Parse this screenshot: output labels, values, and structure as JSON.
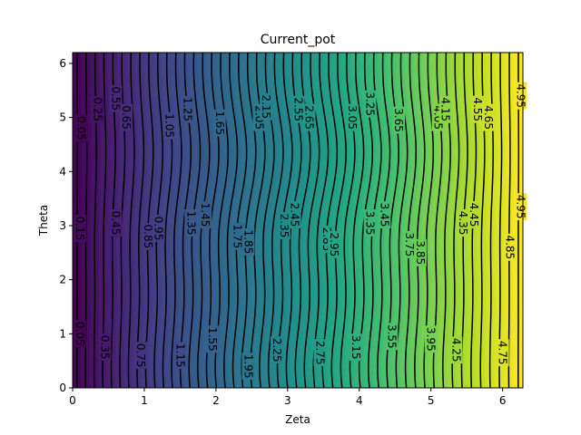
{
  "chart_data": {
    "type": "contour",
    "title": "Current_pot",
    "xlabel": "Zeta",
    "ylabel": "Theta",
    "xlim": [
      0,
      6.283
    ],
    "ylim": [
      0,
      6.2
    ],
    "x_ticks": [
      0,
      1,
      2,
      3,
      4,
      5,
      6
    ],
    "y_ticks": [
      0,
      1,
      2,
      3,
      4,
      5,
      6
    ],
    "colormap": "viridis",
    "value_range": [
      0,
      5
    ],
    "filled_level_step": 0.1,
    "contour_line_color": "#000000",
    "contour_levels": [
      0.05,
      0.15,
      0.25,
      0.35,
      0.45,
      0.55,
      0.65,
      0.75,
      0.85,
      0.95,
      1.05,
      1.15,
      1.25,
      1.35,
      1.45,
      1.55,
      1.65,
      1.75,
      1.85,
      1.95,
      2.05,
      2.15,
      2.25,
      2.35,
      2.45,
      2.55,
      2.65,
      2.75,
      2.85,
      2.95,
      3.05,
      3.15,
      3.25,
      3.35,
      3.45,
      3.55,
      3.65,
      3.75,
      3.85,
      3.95,
      4.05,
      4.15,
      4.25,
      4.35,
      4.45,
      4.55,
      4.65,
      4.75,
      4.85,
      4.95
    ],
    "contour_labels": [
      {
        "text": "0.05",
        "x": 0.12,
        "y": 4.8
      },
      {
        "text": "0.25",
        "x": 0.35,
        "y": 5.15
      },
      {
        "text": "0.55",
        "x": 0.6,
        "y": 5.35
      },
      {
        "text": "0.65",
        "x": 0.75,
        "y": 5.0
      },
      {
        "text": "1.05",
        "x": 1.35,
        "y": 4.85
      },
      {
        "text": "1.25",
        "x": 1.6,
        "y": 5.15
      },
      {
        "text": "1.65",
        "x": 2.05,
        "y": 4.9
      },
      {
        "text": "2.05",
        "x": 2.6,
        "y": 5.0
      },
      {
        "text": "2.15",
        "x": 2.7,
        "y": 5.2
      },
      {
        "text": "2.55",
        "x": 3.15,
        "y": 5.15
      },
      {
        "text": "2.65",
        "x": 3.3,
        "y": 5.0
      },
      {
        "text": "3.05",
        "x": 3.9,
        "y": 5.0
      },
      {
        "text": "3.25",
        "x": 4.15,
        "y": 5.25
      },
      {
        "text": "3.65",
        "x": 4.55,
        "y": 4.95
      },
      {
        "text": "4.05",
        "x": 5.1,
        "y": 5.0
      },
      {
        "text": "4.15",
        "x": 5.2,
        "y": 5.15
      },
      {
        "text": "4.55",
        "x": 5.65,
        "y": 5.15
      },
      {
        "text": "4.65",
        "x": 5.8,
        "y": 5.0
      },
      {
        "text": "4.95",
        "x": 6.25,
        "y": 5.4
      },
      {
        "text": "0.15",
        "x": 0.1,
        "y": 2.95
      },
      {
        "text": "0.45",
        "x": 0.6,
        "y": 3.05
      },
      {
        "text": "0.85",
        "x": 1.05,
        "y": 2.8
      },
      {
        "text": "0.95",
        "x": 1.2,
        "y": 2.95
      },
      {
        "text": "1.35",
        "x": 1.65,
        "y": 3.05
      },
      {
        "text": "1.45",
        "x": 1.85,
        "y": 3.2
      },
      {
        "text": "1.75",
        "x": 2.3,
        "y": 2.8
      },
      {
        "text": "1.85",
        "x": 2.45,
        "y": 2.7
      },
      {
        "text": "2.35",
        "x": 2.95,
        "y": 3.0
      },
      {
        "text": "2.45",
        "x": 3.1,
        "y": 3.2
      },
      {
        "text": "2.85",
        "x": 3.55,
        "y": 2.75
      },
      {
        "text": "2.95",
        "x": 3.65,
        "y": 2.65
      },
      {
        "text": "3.35",
        "x": 4.15,
        "y": 3.05
      },
      {
        "text": "3.45",
        "x": 4.35,
        "y": 3.2
      },
      {
        "text": "3.75",
        "x": 4.7,
        "y": 2.65
      },
      {
        "text": "3.85",
        "x": 4.85,
        "y": 2.5
      },
      {
        "text": "4.35",
        "x": 5.45,
        "y": 3.05
      },
      {
        "text": "4.45",
        "x": 5.6,
        "y": 3.2
      },
      {
        "text": "4.85",
        "x": 6.1,
        "y": 2.6
      },
      {
        "text": "4.95",
        "x": 6.25,
        "y": 3.35
      },
      {
        "text": "0.05",
        "x": 0.1,
        "y": 1.0
      },
      {
        "text": "0.35",
        "x": 0.45,
        "y": 0.75
      },
      {
        "text": "0.75",
        "x": 0.95,
        "y": 0.6
      },
      {
        "text": "1.15",
        "x": 1.5,
        "y": 0.6
      },
      {
        "text": "1.55",
        "x": 1.95,
        "y": 0.9
      },
      {
        "text": "1.95",
        "x": 2.45,
        "y": 0.4
      },
      {
        "text": "2.25",
        "x": 2.85,
        "y": 0.7
      },
      {
        "text": "2.75",
        "x": 3.45,
        "y": 0.65
      },
      {
        "text": "3.15",
        "x": 3.95,
        "y": 0.75
      },
      {
        "text": "3.55",
        "x": 4.45,
        "y": 0.95
      },
      {
        "text": "3.95",
        "x": 5.0,
        "y": 0.9
      },
      {
        "text": "4.25",
        "x": 5.35,
        "y": 0.7
      },
      {
        "text": "4.75",
        "x": 6.0,
        "y": 0.65
      }
    ]
  }
}
